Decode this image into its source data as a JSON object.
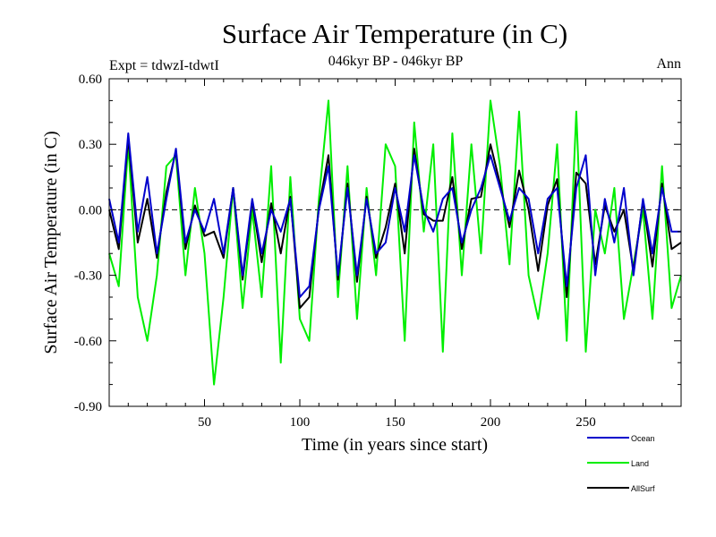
{
  "chart_data": {
    "type": "line",
    "title": "Surface Air Temperature (in C)",
    "subtitle": "046kyr BP - 046kyr BP",
    "experiment_label": "Expt = tdwzI-tdwtI",
    "period_label": "Ann",
    "xlabel": "Time (in years since start)",
    "ylabel": "Surface Air Temperature (in C)",
    "xlim": [
      0,
      300
    ],
    "ylim": [
      -0.9,
      0.6
    ],
    "x_ticks": [
      50,
      100,
      150,
      200,
      250
    ],
    "y_ticks": [
      "0.60",
      "0.30",
      "0.00",
      "-0.30",
      "-0.60",
      "-0.90"
    ],
    "y_tick_values": [
      0.6,
      0.3,
      0.0,
      -0.3,
      -0.6,
      -0.9
    ],
    "zero_line": "dashed",
    "grid": false,
    "legend_position": "bottom-right",
    "series": [
      {
        "name": "Ocean",
        "color": "#0000cc",
        "x": [
          0,
          5,
          10,
          15,
          20,
          25,
          30,
          35,
          40,
          45,
          50,
          55,
          60,
          65,
          70,
          75,
          80,
          85,
          90,
          95,
          100,
          105,
          110,
          115,
          120,
          125,
          130,
          135,
          140,
          145,
          150,
          155,
          160,
          165,
          170,
          175,
          180,
          185,
          190,
          195,
          200,
          205,
          210,
          215,
          220,
          225,
          230,
          235,
          240,
          245,
          250,
          255,
          260,
          265,
          270,
          275,
          280,
          285,
          290,
          295,
          300
        ],
        "values": [
          0.05,
          -0.15,
          0.35,
          -0.1,
          0.15,
          -0.2,
          0.05,
          0.28,
          -0.15,
          0.0,
          -0.1,
          0.05,
          -0.2,
          0.1,
          -0.3,
          0.05,
          -0.2,
          0.0,
          -0.1,
          0.05,
          -0.4,
          -0.35,
          0.0,
          0.2,
          -0.3,
          0.1,
          -0.3,
          0.05,
          -0.2,
          -0.15,
          0.1,
          -0.1,
          0.25,
          0.0,
          -0.1,
          0.05,
          0.1,
          -0.15,
          0.0,
          0.1,
          0.25,
          0.1,
          -0.05,
          0.1,
          0.05,
          -0.2,
          0.05,
          0.1,
          -0.35,
          0.1,
          0.25,
          -0.3,
          0.05,
          -0.15,
          0.1,
          -0.3,
          0.05,
          -0.2,
          0.1,
          -0.1,
          -0.1
        ]
      },
      {
        "name": "Land",
        "color": "#00ee00",
        "x": [
          0,
          5,
          10,
          15,
          20,
          25,
          30,
          35,
          40,
          45,
          50,
          55,
          60,
          65,
          70,
          75,
          80,
          85,
          90,
          95,
          100,
          105,
          110,
          115,
          120,
          125,
          130,
          135,
          140,
          145,
          150,
          155,
          160,
          165,
          170,
          175,
          180,
          185,
          190,
          195,
          200,
          205,
          210,
          215,
          220,
          225,
          230,
          235,
          240,
          245,
          250,
          255,
          260,
          265,
          270,
          275,
          280,
          285,
          290,
          295,
          300
        ],
        "values": [
          -0.2,
          -0.35,
          0.3,
          -0.4,
          -0.6,
          -0.3,
          0.2,
          0.25,
          -0.3,
          0.1,
          -0.2,
          -0.8,
          -0.4,
          0.1,
          -0.45,
          0.0,
          -0.4,
          0.2,
          -0.7,
          0.15,
          -0.5,
          -0.6,
          0.05,
          0.5,
          -0.4,
          0.2,
          -0.5,
          0.1,
          -0.3,
          0.3,
          0.2,
          -0.6,
          0.4,
          -0.1,
          0.3,
          -0.65,
          0.35,
          -0.3,
          0.3,
          -0.2,
          0.5,
          0.2,
          -0.25,
          0.45,
          -0.3,
          -0.5,
          -0.2,
          0.3,
          -0.6,
          0.45,
          -0.65,
          0.0,
          -0.2,
          0.1,
          -0.5,
          -0.25,
          0.0,
          -0.5,
          0.2,
          -0.45,
          -0.3
        ]
      },
      {
        "name": "AllSurf",
        "color": "#000000",
        "x": [
          0,
          5,
          10,
          15,
          20,
          25,
          30,
          35,
          40,
          45,
          50,
          55,
          60,
          65,
          70,
          75,
          80,
          85,
          90,
          95,
          100,
          105,
          110,
          115,
          120,
          125,
          130,
          135,
          140,
          145,
          150,
          155,
          160,
          165,
          170,
          175,
          180,
          185,
          190,
          195,
          200,
          205,
          210,
          215,
          220,
          225,
          230,
          235,
          240,
          245,
          250,
          255,
          260,
          265,
          270,
          275,
          280,
          285,
          290,
          295,
          300
        ],
        "values": [
          0.0,
          -0.18,
          0.33,
          -0.15,
          0.05,
          -0.22,
          0.08,
          0.27,
          -0.18,
          0.02,
          -0.12,
          -0.1,
          -0.22,
          0.1,
          -0.32,
          0.04,
          -0.24,
          0.03,
          -0.2,
          0.06,
          -0.45,
          -0.4,
          0.01,
          0.25,
          -0.32,
          0.12,
          -0.33,
          0.06,
          -0.22,
          -0.08,
          0.12,
          -0.2,
          0.28,
          -0.02,
          -0.05,
          -0.05,
          0.15,
          -0.18,
          0.05,
          0.06,
          0.3,
          0.12,
          -0.08,
          0.18,
          0.0,
          -0.28,
          0.02,
          0.14,
          -0.4,
          0.17,
          0.12,
          -0.25,
          0.02,
          -0.1,
          0.0,
          -0.28,
          0.04,
          -0.26,
          0.12,
          -0.18,
          -0.15
        ]
      }
    ]
  }
}
